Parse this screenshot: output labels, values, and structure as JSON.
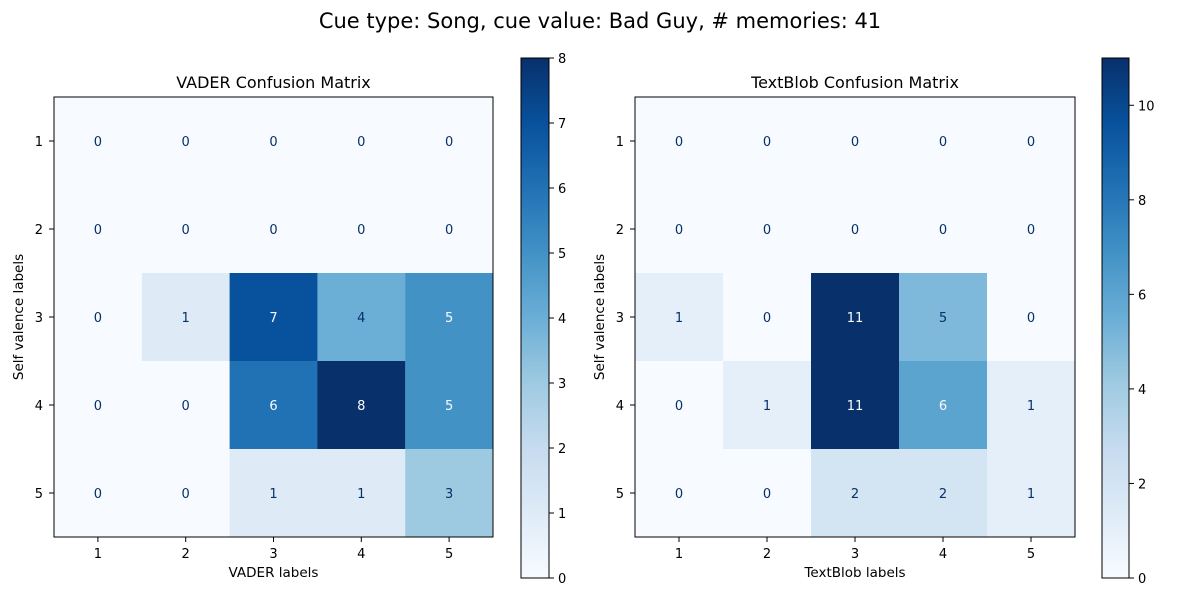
{
  "suptitle": "Cue type: Song, cue value: Bad Guy, # memories: 41",
  "colormap": {
    "name": "Blues",
    "low": "#f7fbff",
    "high": "#08306b",
    "text_dark": "#08306b",
    "text_light": "#f7fbff"
  },
  "chart_data": [
    {
      "type": "heatmap",
      "title": "VADER Confusion Matrix",
      "xlabel": "VADER labels",
      "ylabel": "Self valence labels",
      "x_categories": [
        "1",
        "2",
        "3",
        "4",
        "5"
      ],
      "y_categories": [
        "1",
        "2",
        "3",
        "4",
        "5"
      ],
      "values": [
        [
          0,
          0,
          0,
          0,
          0
        ],
        [
          0,
          0,
          0,
          0,
          0
        ],
        [
          0,
          1,
          7,
          4,
          5
        ],
        [
          0,
          0,
          6,
          8,
          5
        ],
        [
          0,
          0,
          1,
          1,
          3
        ]
      ],
      "colorbar": {
        "min": 0,
        "max": 8,
        "ticks": [
          0,
          1,
          2,
          3,
          4,
          5,
          6,
          7,
          8
        ]
      }
    },
    {
      "type": "heatmap",
      "title": "TextBlob Confusion Matrix",
      "xlabel": "TextBlob labels",
      "ylabel": "Self valence labels",
      "x_categories": [
        "1",
        "2",
        "3",
        "4",
        "5"
      ],
      "y_categories": [
        "1",
        "2",
        "3",
        "4",
        "5"
      ],
      "values": [
        [
          0,
          0,
          0,
          0,
          0
        ],
        [
          0,
          0,
          0,
          0,
          0
        ],
        [
          1,
          0,
          11,
          5,
          0
        ],
        [
          0,
          1,
          11,
          6,
          1
        ],
        [
          0,
          0,
          2,
          2,
          1
        ]
      ],
      "colorbar": {
        "min": 0,
        "max": 11,
        "ticks": [
          0,
          2,
          4,
          6,
          8,
          10
        ]
      }
    }
  ]
}
